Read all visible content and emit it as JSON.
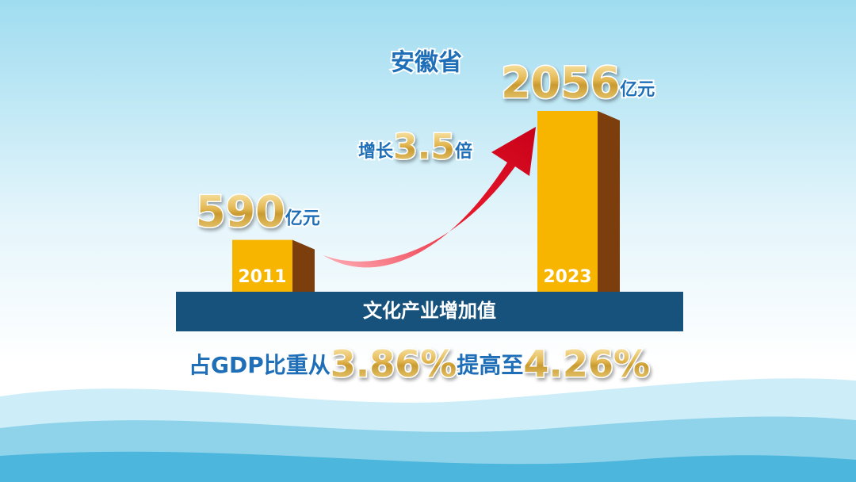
{
  "chart_data": {
    "type": "bar",
    "title": "安徽省",
    "categories": [
      "2011",
      "2023"
    ],
    "values": [
      590,
      2056
    ],
    "unit": "亿元",
    "color": "#f7b500",
    "side_color": "#7b3e0c",
    "category_label": "文化产业增加值",
    "growth": [
      "增长",
      "3.5",
      "倍"
    ],
    "share": [
      "占GDP比重从",
      "3.86%",
      "提高至",
      "4.26%"
    ]
  }
}
